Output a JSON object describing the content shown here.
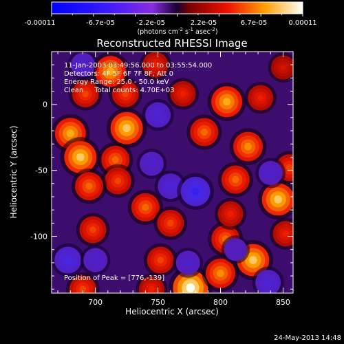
{
  "chart_data": {
    "type": "heatmap",
    "title": "Reconstructed RHESSI Image",
    "xlabel": "Heliocentric X (arcsec)",
    "ylabel": "Heliocentric Y (arcsec)",
    "xlim": [
      665,
      858
    ],
    "ylim": [
      -143,
      40
    ],
    "x_ticks": [
      700,
      750,
      800,
      850
    ],
    "y_ticks": [
      0,
      -50,
      -100
    ],
    "colorbar": {
      "range": [
        -0.00011,
        0.00011
      ],
      "tick_labels": [
        "-0.00011",
        "-6.7e-05",
        "-2.2e-05",
        "2.2e-05",
        "6.7e-05",
        "0.00011"
      ],
      "unit_line1": "(photons cm",
      "unit_exp1": "-2",
      "unit_line2": " s",
      "unit_exp2": "-1",
      "unit_line3": " asec",
      "unit_exp3": "-2",
      "unit_close": ")"
    },
    "annotations": {
      "time_range": "11-Jan-2003 03:49:56.000 to 03:55:54.000",
      "detectors": "Detectors: 4F 5F 6F 7F 8F, Att 0",
      "energy": "Energy Range: 25.0 - 50.0 keV",
      "clean": "Clean     Total counts: 4.70E+03",
      "peak": "Position of Peak = [776,-139]"
    },
    "peak": [
      776,
      -139
    ],
    "blobs": [
      {
        "x": 776,
        "y": -139,
        "v": 0.00011
      },
      {
        "x": 752,
        "y": -118,
        "v": 5e-05
      },
      {
        "x": 800,
        "y": -128,
        "v": 7e-05
      },
      {
        "x": 826,
        "y": -118,
        "v": 9e-05
      },
      {
        "x": 852,
        "y": -98,
        "v": 4e-05
      },
      {
        "x": 804,
        "y": -102,
        "v": 6e-05
      },
      {
        "x": 808,
        "y": -83,
        "v": 4e-05
      },
      {
        "x": 846,
        "y": -72,
        "v": 9e-05
      },
      {
        "x": 855,
        "y": -48,
        "v": 5e-05
      },
      {
        "x": 812,
        "y": -57,
        "v": 6e-05
      },
      {
        "x": 822,
        "y": -32,
        "v": 7e-05
      },
      {
        "x": 787,
        "y": -21,
        "v": 6e-05
      },
      {
        "x": 805,
        "y": 2,
        "v": 8e-05
      },
      {
        "x": 832,
        "y": 5,
        "v": 4e-05
      },
      {
        "x": 850,
        "y": 28,
        "v": 3e-05
      },
      {
        "x": 770,
        "y": 8,
        "v": 4e-05
      },
      {
        "x": 748,
        "y": 30,
        "v": 4e-05
      },
      {
        "x": 725,
        "y": -18,
        "v": 9e-05
      },
      {
        "x": 716,
        "y": -42,
        "v": 6e-05
      },
      {
        "x": 718,
        "y": -58,
        "v": 5e-05
      },
      {
        "x": 724,
        "y": 8,
        "v": 5e-05
      },
      {
        "x": 740,
        "y": -78,
        "v": 6e-05
      },
      {
        "x": 760,
        "y": -90,
        "v": 5e-05
      },
      {
        "x": 745,
        "y": -140,
        "v": 4e-05
      },
      {
        "x": 712,
        "y": 25,
        "v": 8e-05
      },
      {
        "x": 692,
        "y": 8,
        "v": 5e-05
      },
      {
        "x": 680,
        "y": -22,
        "v": 8e-05
      },
      {
        "x": 688,
        "y": -40,
        "v": 9e-05
      },
      {
        "x": 695,
        "y": -62,
        "v": 6e-05
      },
      {
        "x": 698,
        "y": -95,
        "v": 5e-05
      },
      {
        "x": 690,
        "y": -140,
        "v": 5e-05
      },
      {
        "x": 760,
        "y": -62,
        "v": -4e-05
      },
      {
        "x": 780,
        "y": -66,
        "v": -7e-05
      },
      {
        "x": 774,
        "y": -120,
        "v": -3e-05
      },
      {
        "x": 750,
        "y": -8,
        "v": -4e-05
      },
      {
        "x": 745,
        "y": -45,
        "v": -3e-05
      },
      {
        "x": 678,
        "y": -118,
        "v": -5e-05
      },
      {
        "x": 700,
        "y": -118,
        "v": -3e-05
      },
      {
        "x": 840,
        "y": -52,
        "v": -3e-05
      },
      {
        "x": 690,
        "y": 30,
        "v": -3e-05
      },
      {
        "x": 838,
        "y": -135,
        "v": -4e-05
      },
      {
        "x": 812,
        "y": -110,
        "v": -2e-05
      }
    ]
  },
  "footer": {
    "date_stamp": "24-May-2013 14:48"
  }
}
